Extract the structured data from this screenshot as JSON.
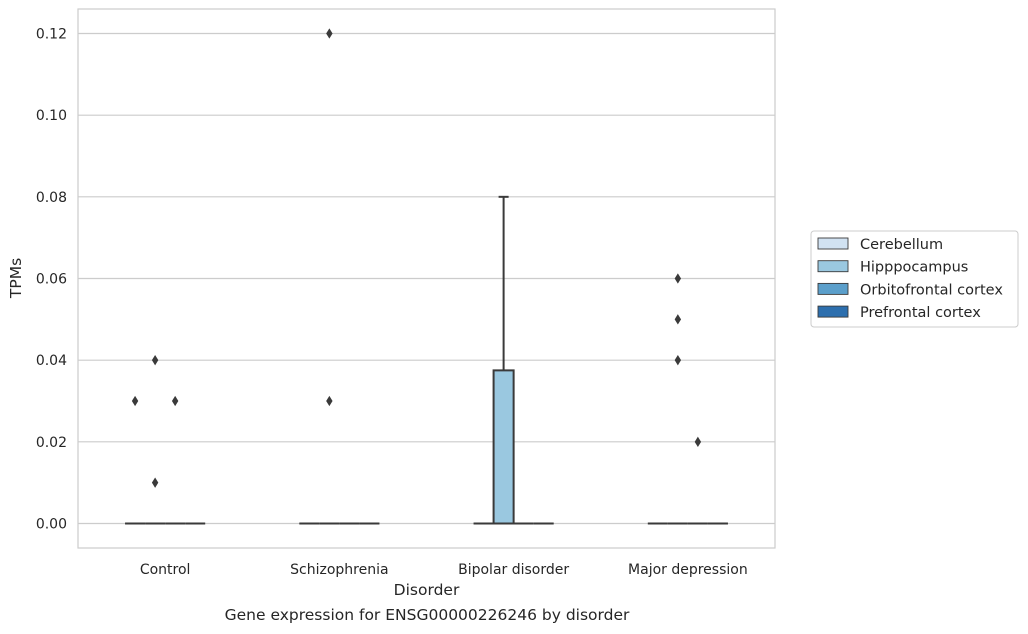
{
  "caption": "Gene expression for ENSG00000226246 by disorder",
  "chart_data": {
    "type": "box",
    "title": "",
    "xlabel": "Disorder",
    "ylabel": "TPMs",
    "categories": [
      "Control",
      "Schizophrenia",
      "Bipolar disorder",
      "Major depression"
    ],
    "ylim": [
      -0.006,
      0.126
    ],
    "yticks": [
      0.0,
      0.02,
      0.04,
      0.06,
      0.08,
      0.1,
      0.12
    ],
    "ytick_labels": [
      "0.00",
      "0.02",
      "0.04",
      "0.06",
      "0.08",
      "0.10",
      "0.12"
    ],
    "grid": true,
    "legend_position": "right",
    "colors": {
      "Cerebellum": "#d1e2f2",
      "Hipppocampus": "#9ac8e0",
      "Orbitofrontal cortex": "#5b9fcb",
      "Prefrontal cortex": "#2d6fae",
      "grid": "#cccccc",
      "edge": "#3a3a3a"
    },
    "series": [
      {
        "name": "Cerebellum",
        "boxes": [
          {
            "category": "Control",
            "q1": 0.0,
            "median": 0.0,
            "q3": 0.0,
            "whislo": 0.0,
            "whishi": 0.0,
            "fliers": [
              0.03
            ]
          },
          {
            "category": "Schizophrenia",
            "q1": 0.0,
            "median": 0.0,
            "q3": 0.0,
            "whislo": 0.0,
            "whishi": 0.0,
            "fliers": []
          },
          {
            "category": "Bipolar disorder",
            "q1": 0.0,
            "median": 0.0,
            "q3": 0.0,
            "whislo": 0.0,
            "whishi": 0.0,
            "fliers": []
          },
          {
            "category": "Major depression",
            "q1": 0.0,
            "median": 0.0,
            "q3": 0.0,
            "whislo": 0.0,
            "whishi": 0.0,
            "fliers": []
          }
        ]
      },
      {
        "name": "Hipppocampus",
        "boxes": [
          {
            "category": "Control",
            "q1": 0.0,
            "median": 0.0,
            "q3": 0.0,
            "whislo": 0.0,
            "whishi": 0.0,
            "fliers": [
              0.04,
              0.01
            ]
          },
          {
            "category": "Schizophrenia",
            "q1": 0.0,
            "median": 0.0,
            "q3": 0.0,
            "whislo": 0.0,
            "whishi": 0.0,
            "fliers": [
              0.12,
              0.03
            ]
          },
          {
            "category": "Bipolar disorder",
            "q1": 0.0,
            "median": 0.0,
            "q3": 0.0375,
            "whislo": 0.0,
            "whishi": 0.08,
            "fliers": []
          },
          {
            "category": "Major depression",
            "q1": 0.0,
            "median": 0.0,
            "q3": 0.0,
            "whislo": 0.0,
            "whishi": 0.0,
            "fliers": [
              0.06,
              0.05,
              0.04
            ]
          }
        ]
      },
      {
        "name": "Orbitofrontal cortex",
        "boxes": [
          {
            "category": "Control",
            "q1": 0.0,
            "median": 0.0,
            "q3": 0.0,
            "whislo": 0.0,
            "whishi": 0.0,
            "fliers": [
              0.03
            ]
          },
          {
            "category": "Schizophrenia",
            "q1": 0.0,
            "median": 0.0,
            "q3": 0.0,
            "whislo": 0.0,
            "whishi": 0.0,
            "fliers": []
          },
          {
            "category": "Bipolar disorder",
            "q1": 0.0,
            "median": 0.0,
            "q3": 0.0,
            "whislo": 0.0,
            "whishi": 0.0,
            "fliers": []
          },
          {
            "category": "Major depression",
            "q1": 0.0,
            "median": 0.0,
            "q3": 0.0,
            "whislo": 0.0,
            "whishi": 0.0,
            "fliers": [
              0.02
            ]
          }
        ]
      },
      {
        "name": "Prefrontal cortex",
        "boxes": [
          {
            "category": "Control",
            "q1": 0.0,
            "median": 0.0,
            "q3": 0.0,
            "whislo": 0.0,
            "whishi": 0.0,
            "fliers": []
          },
          {
            "category": "Schizophrenia",
            "q1": 0.0,
            "median": 0.0,
            "q3": 0.0,
            "whislo": 0.0,
            "whishi": 0.0,
            "fliers": []
          },
          {
            "category": "Bipolar disorder",
            "q1": 0.0,
            "median": 0.0,
            "q3": 0.0,
            "whislo": 0.0,
            "whishi": 0.0,
            "fliers": []
          },
          {
            "category": "Major depression",
            "q1": 0.0,
            "median": 0.0,
            "q3": 0.0,
            "whislo": 0.0,
            "whishi": 0.0,
            "fliers": []
          }
        ]
      }
    ]
  }
}
